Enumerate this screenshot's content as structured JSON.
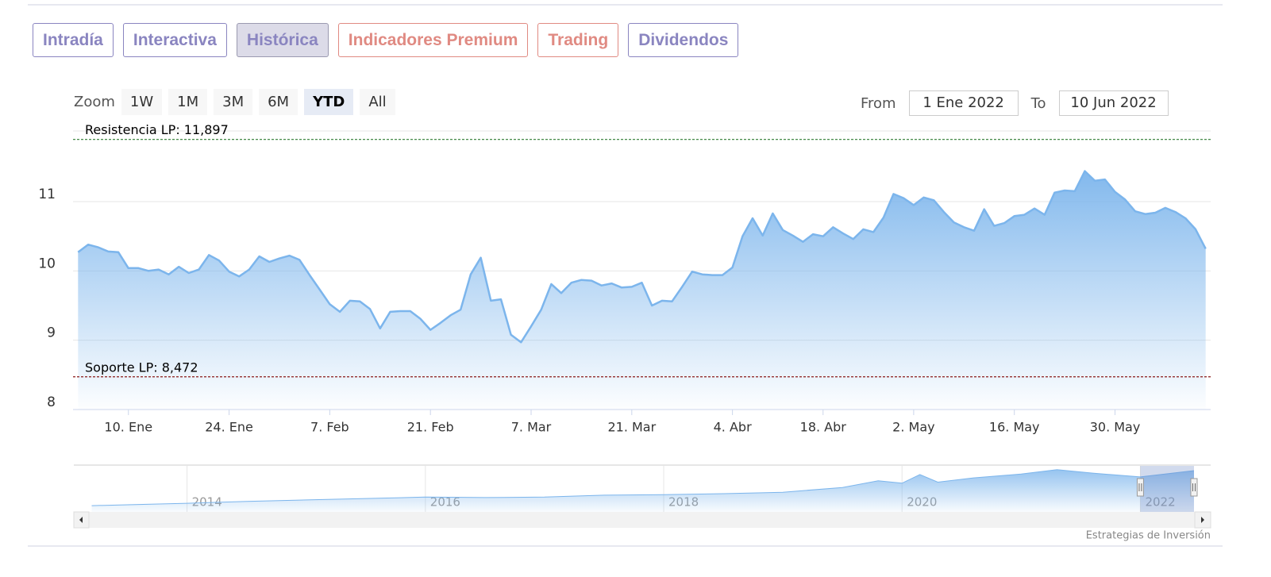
{
  "tabs": [
    {
      "label": "Intradía",
      "color": "#8a85c0",
      "active": false
    },
    {
      "label": "Interactiva",
      "color": "#8a85c0",
      "active": false
    },
    {
      "label": "Histórica",
      "color": "#8a85c0",
      "active": true
    },
    {
      "label": "Indicadores Premium",
      "color": "#e08a82",
      "active": false
    },
    {
      "label": "Trading",
      "color": "#e08a82",
      "active": false
    },
    {
      "label": "Dividendos",
      "color": "#8a85c0",
      "active": false
    }
  ],
  "zoom": {
    "label": "Zoom",
    "buttons": [
      {
        "label": "1W",
        "active": false
      },
      {
        "label": "1M",
        "active": false
      },
      {
        "label": "3M",
        "active": false
      },
      {
        "label": "6M",
        "active": false
      },
      {
        "label": "YTD",
        "active": true
      },
      {
        "label": "All",
        "active": false
      }
    ]
  },
  "range": {
    "from_label": "From",
    "from": "1 Ene 2022",
    "to_label": "To",
    "to": "10 Jun 2022"
  },
  "credit": "Estrategias de Inversión",
  "chart_data": [
    {
      "type": "area",
      "color": "#7cb5ec",
      "categories": [
        null,
        null,
        null,
        null,
        null,
        "10. Ene",
        null,
        null,
        null,
        null,
        null,
        null,
        null,
        null,
        null,
        "24. Ene",
        null,
        null,
        null,
        null,
        null,
        null,
        null,
        null,
        null,
        "7. Feb",
        null,
        null,
        null,
        null,
        null,
        null,
        null,
        null,
        null,
        "21. Feb",
        null,
        null,
        null,
        null,
        null,
        null,
        null,
        null,
        null,
        "7. Mar",
        null,
        null,
        null,
        null,
        null,
        null,
        null,
        null,
        null,
        "21. Mar",
        null,
        null,
        null,
        null,
        null,
        null,
        null,
        null,
        null,
        "4. Abr",
        null,
        null,
        null,
        null,
        null,
        null,
        null,
        null,
        "18. Abr",
        null,
        null,
        null,
        null,
        null,
        null,
        null,
        null,
        "2. May",
        null,
        null,
        null,
        null,
        null,
        null,
        null,
        null,
        null,
        "16. May",
        null,
        null,
        null,
        null,
        null,
        null,
        null,
        null,
        null,
        "30. May",
        null,
        null,
        null,
        null,
        null,
        null,
        null,
        null,
        null
      ],
      "values": [
        10.27,
        10.38,
        10.34,
        10.28,
        10.27,
        10.04,
        10.04,
        10.0,
        10.02,
        9.95,
        10.06,
        9.97,
        10.02,
        10.23,
        10.15,
        9.99,
        9.92,
        10.02,
        10.21,
        10.13,
        10.18,
        10.22,
        10.16,
        9.94,
        9.73,
        9.52,
        9.41,
        9.57,
        9.56,
        9.45,
        9.17,
        9.41,
        9.42,
        9.42,
        9.31,
        9.15,
        9.25,
        9.36,
        9.44,
        9.95,
        10.19,
        9.57,
        9.59,
        9.08,
        8.97,
        9.2,
        9.44,
        9.81,
        9.68,
        9.83,
        9.87,
        9.86,
        9.79,
        9.82,
        9.76,
        9.77,
        9.83,
        9.5,
        9.57,
        9.56,
        9.77,
        9.99,
        9.95,
        9.94,
        9.94,
        10.05,
        10.5,
        10.76,
        10.51,
        10.83,
        10.59,
        10.51,
        10.42,
        10.53,
        10.5,
        10.63,
        10.54,
        10.46,
        10.6,
        10.56,
        10.77,
        11.11,
        11.05,
        10.95,
        11.06,
        11.02,
        10.85,
        10.7,
        10.63,
        10.58,
        10.89,
        10.65,
        10.69,
        10.79,
        10.81,
        10.9,
        10.81,
        11.13,
        11.16,
        11.15,
        11.44,
        11.3,
        11.32,
        11.14,
        11.03,
        10.86,
        10.82,
        10.84,
        10.91,
        10.85,
        10.76,
        10.6,
        10.32
      ],
      "ylim": [
        8,
        12
      ],
      "yticks": [
        8,
        9,
        10,
        11
      ],
      "grid": true,
      "annotations": [
        {
          "label": "Resistencia LP: 11,897",
          "value": 11.897,
          "color": "#2e7d32"
        },
        {
          "label": "Soporte LP: 8,472",
          "value": 8.472,
          "color": "#8b1a1a"
        }
      ]
    },
    {
      "type": "area",
      "color": "#7cb5ec",
      "x": [
        2013.2,
        2014,
        2014.5,
        2015,
        2015.5,
        2016,
        2016.5,
        2017,
        2017.5,
        2018,
        2018.5,
        2019,
        2019.5,
        2019.8,
        2020,
        2020.15,
        2020.3,
        2020.6,
        2021,
        2021.3,
        2021.6,
        2022,
        2022.45
      ],
      "values": [
        3.6,
        4.1,
        4.5,
        4.8,
        5.1,
        5.4,
        5.3,
        5.4,
        5.8,
        5.9,
        6.1,
        6.4,
        7.4,
        8.8,
        8.3,
        10.1,
        8.5,
        9.4,
        10.2,
        11.1,
        10.4,
        9.6,
        10.9
      ],
      "xlim": [
        2013.05,
        2022.59
      ],
      "ylim": [
        2.3,
        11.9
      ],
      "xticks": [
        2014,
        2016,
        2018,
        2020,
        2022
      ]
    }
  ]
}
